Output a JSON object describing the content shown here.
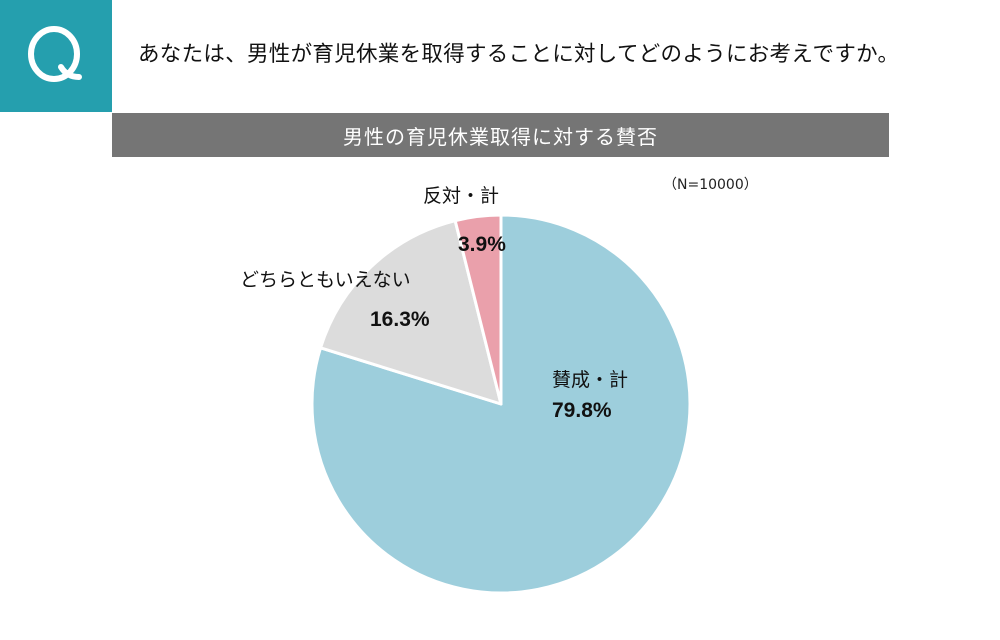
{
  "header": {
    "q_icon_letter": "Q",
    "question": "あなたは、男性が育児休業を取得することに対してどのようにお考えですか。",
    "subtitle": "男性の育児休業取得に対する賛否",
    "sample_note": "（N=10000）"
  },
  "colors": {
    "q_box": "#259fae",
    "subtitle_bar": "#757575",
    "agree": "#9dcedc",
    "neutral": "#dcdcdc",
    "disagree": "#eaa0ab"
  },
  "chart_data": {
    "type": "pie",
    "title": "男性の育児休業取得に対する賛否",
    "note": "（N=10000）",
    "start_angle": "12 o'clock, clockwise",
    "categories": [
      "賛成・計",
      "どちらともいえない",
      "反対・計"
    ],
    "values": [
      79.8,
      16.3,
      3.9
    ],
    "unit": "%",
    "colors": [
      "#9dcedc",
      "#dcdcdc",
      "#eaa0ab"
    ]
  },
  "labels": {
    "agree": {
      "cat": "賛成・計",
      "pct": "79.8%"
    },
    "neutral": {
      "cat": "どちらともいえない",
      "pct": "16.3%"
    },
    "disagree": {
      "cat": "反対・計",
      "pct": "3.9%"
    }
  }
}
